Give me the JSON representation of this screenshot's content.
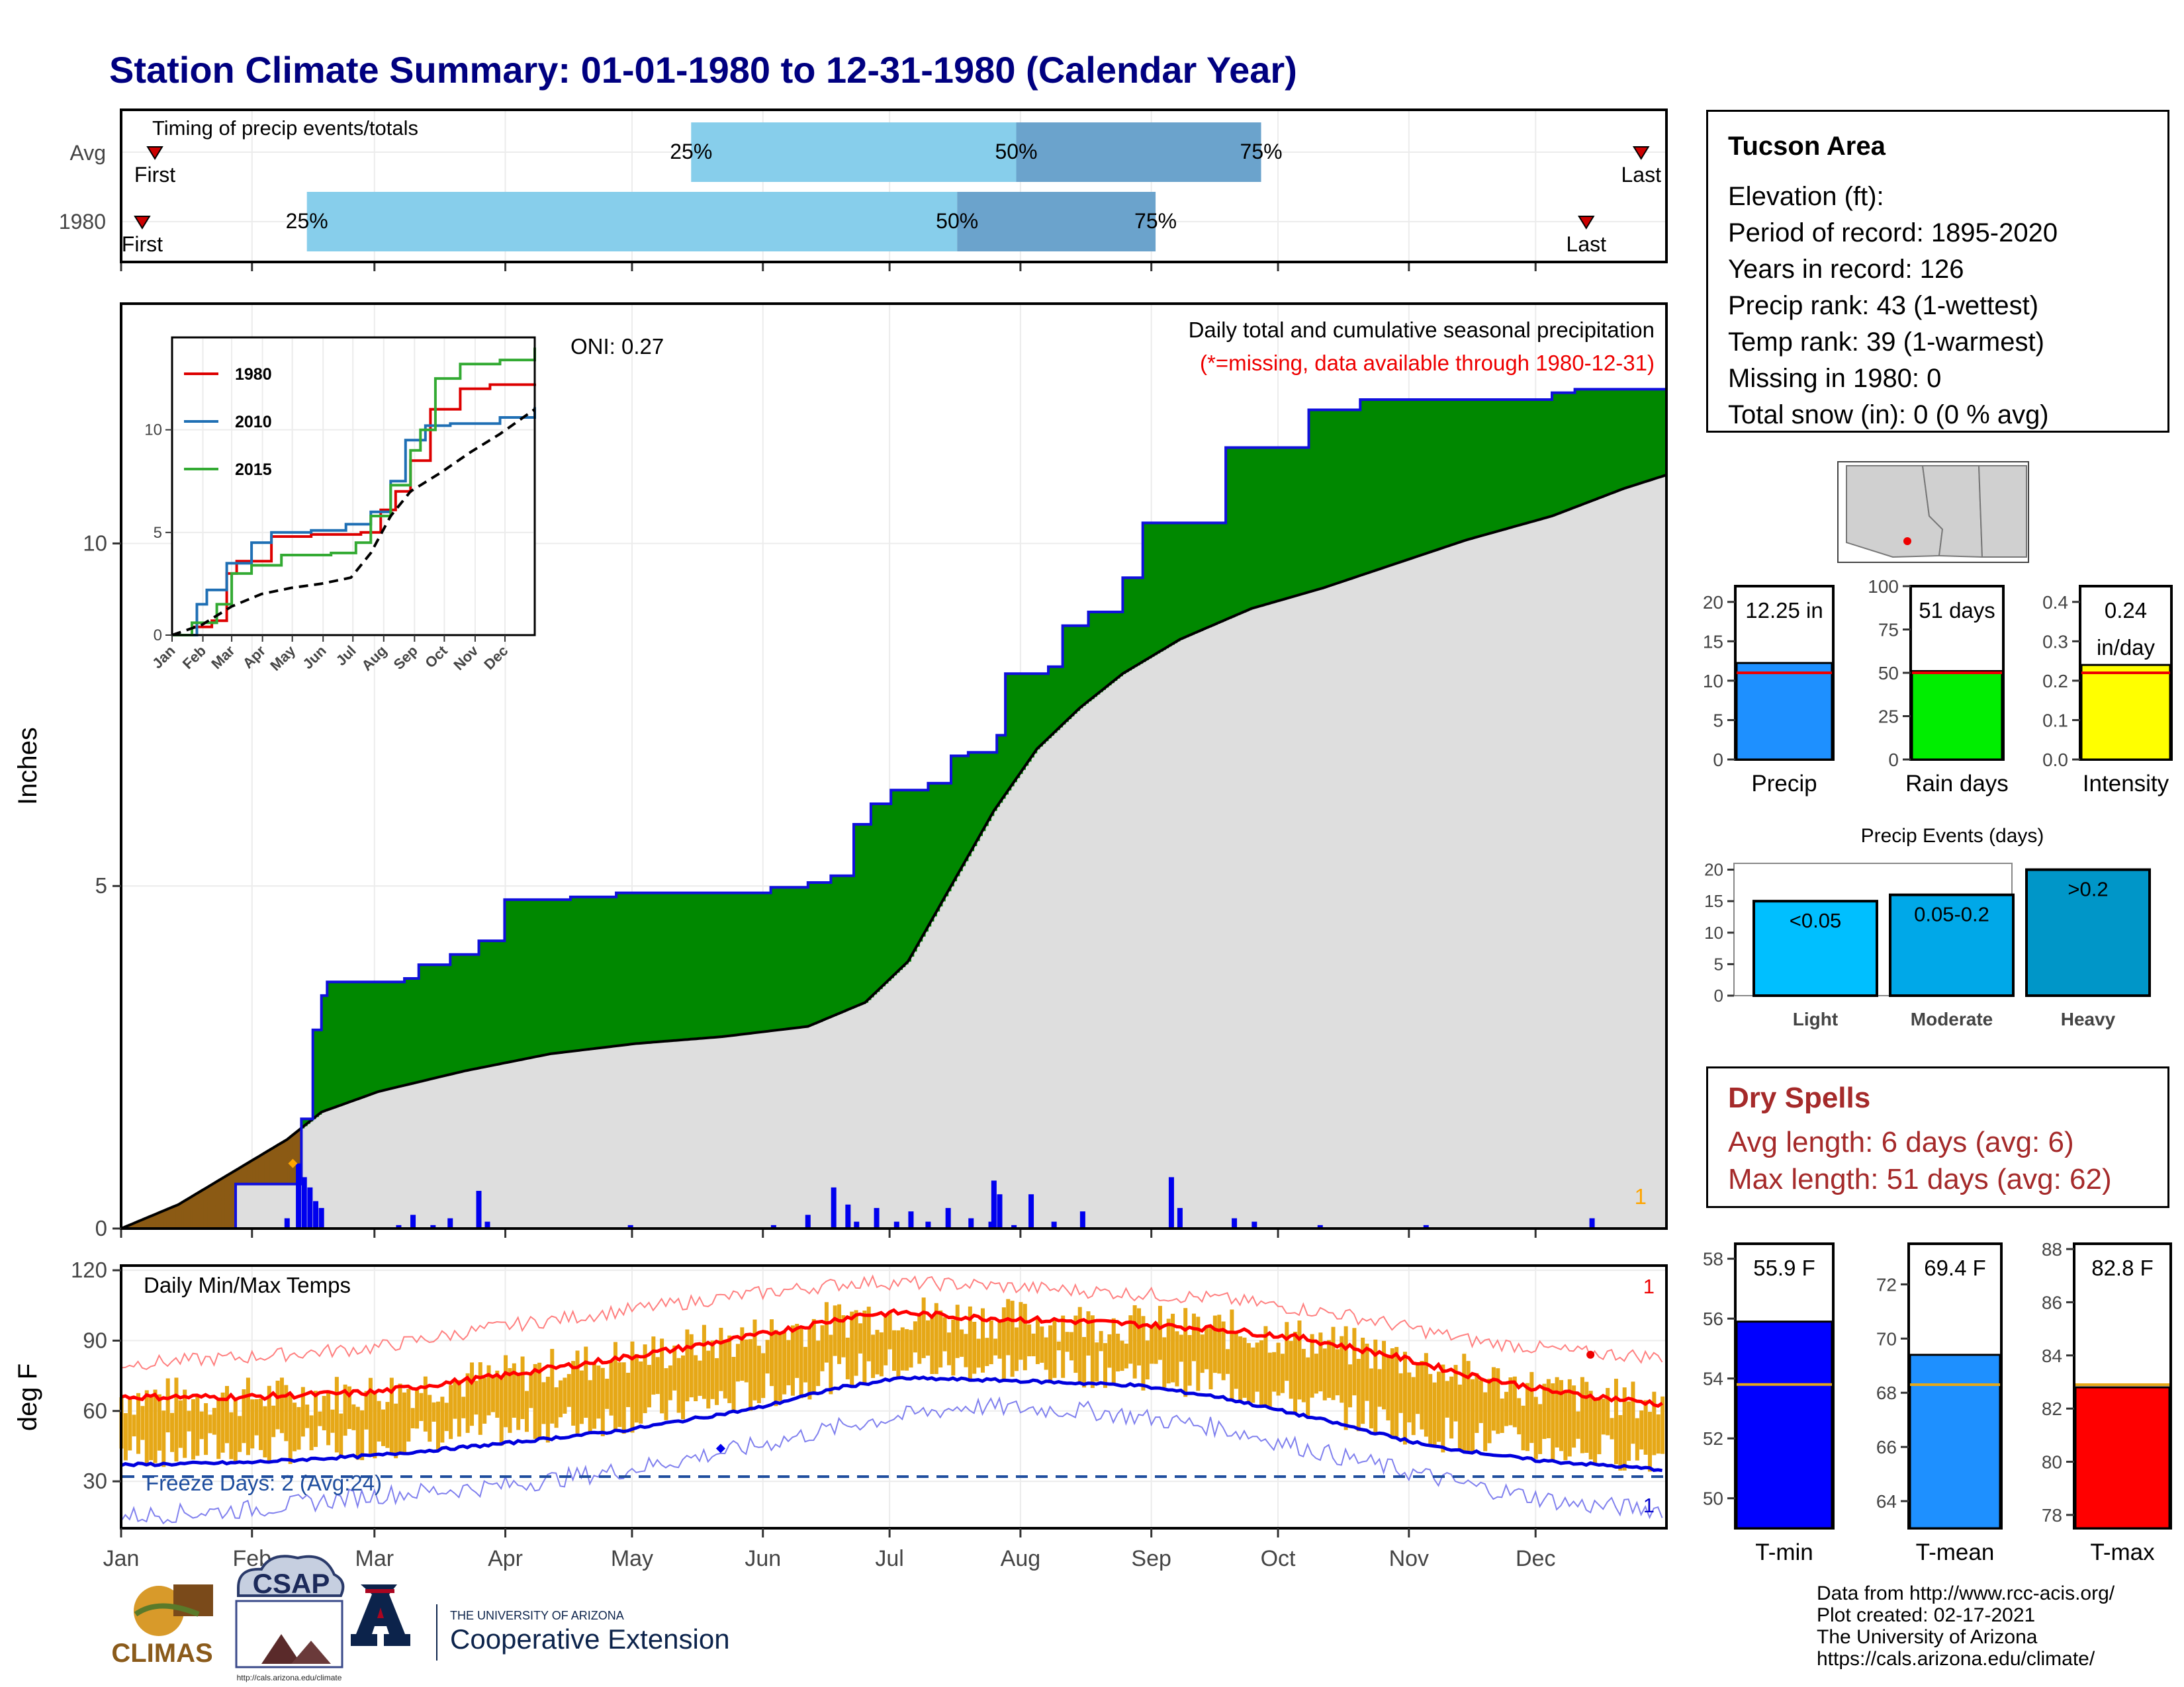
{
  "title": "Station Climate Summary: 01-01-1980 to 12-31-1980 (Calendar Year)",
  "station": {
    "name": "Tucson Area",
    "lines": [
      "Elevation (ft):",
      "Period of record: 1895-2020",
      "Years in record: 126",
      "Precip rank: 43 (1-wettest)",
      "Temp rank: 39 (1-warmest)",
      "Missing in 1980: 0",
      "Total snow (in): 0 (0 % avg)"
    ]
  },
  "dry_spells": {
    "title": "Dry Spells",
    "avg": "Avg length: 6 days (avg: 6)",
    "max": "Max length: 51 days (avg: 62)"
  },
  "credits": [
    "Data from http://www.rcc-acis.org/",
    "Plot created: 02-17-2021",
    "The University of Arizona",
    "https://cals.arizona.edu/climate/"
  ],
  "logos": {
    "climas": "CLIMAS",
    "csap": "CSAP",
    "csap_url": "http://cals.arizona.edu/climate",
    "ua_small": "THE UNIVERSITY OF ARIZONA",
    "ua_big": "Cooperative Extension"
  },
  "colors": {
    "title": "#000080",
    "q_light": "#87ceeb",
    "q_dark": "#6ba3cc",
    "precip_green": "#008800",
    "precip_brown": "#8b5a14",
    "avg_fill": "#dedede",
    "daily_bar": "#0000ee",
    "temp_bar": "#e6a817",
    "tmax": "#ff0000",
    "tmin": "#0000dd",
    "precip_bar": "#1e90ff",
    "days_bar": "#00ee00",
    "int_bar": "#ffff00",
    "light": "#00bfff",
    "moderate": "#00a8e8",
    "heavy": "#0096c8",
    "tmin_bar": "#0000ff",
    "tmean_bar": "#1e90ff",
    "tmax_bar": "#ff0000"
  },
  "chart_data": [
    {
      "id": "timing",
      "type": "bar",
      "title": "Timing of precip events/totals",
      "rows": [
        {
          "label": "Avg",
          "first": "First",
          "last": "Last",
          "first_day": 8,
          "last_day": 360,
          "q25_day": 135,
          "q50_day": 212,
          "q75_day": 270,
          "q25": "25%",
          "q50": "50%",
          "q75": "75%"
        },
        {
          "label": "1980",
          "first": "First",
          "last": "Last",
          "first_day": 5,
          "last_day": 347,
          "q25_day": 44,
          "q50_day": 198,
          "q75_day": 245,
          "q25": "25%",
          "q50": "50%",
          "q75": "75%"
        }
      ]
    },
    {
      "id": "precip",
      "type": "area",
      "title": "Daily total and cumulative seasonal precipitation",
      "subtitle": "(*=missing, data available through 1980-12-31)",
      "ylabel": "Inches",
      "oni": "ONI: 0.27",
      "ylim": [
        0,
        13.5
      ],
      "yticks": [
        0,
        5,
        10
      ],
      "corner_label": "1",
      "xticks": [
        "Jan",
        "Feb",
        "Mar",
        "Apr",
        "May",
        "Jun",
        "Jul",
        "Aug",
        "Sep",
        "Oct",
        "Nov",
        "Dec"
      ],
      "cumulative_1980": [
        [
          0,
          0
        ],
        [
          20,
          0
        ],
        [
          40,
          0.65
        ],
        [
          58,
          0.65
        ],
        [
          63,
          1.6
        ],
        [
          67,
          2.9
        ],
        [
          70,
          3.4
        ],
        [
          72,
          3.6
        ],
        [
          99,
          3.65
        ],
        [
          104,
          3.85
        ],
        [
          115,
          4.0
        ],
        [
          125,
          4.2
        ],
        [
          134,
          4.8
        ],
        [
          157,
          4.84
        ],
        [
          173,
          4.9
        ],
        [
          227,
          4.98
        ],
        [
          240,
          5.05
        ],
        [
          248,
          5.15
        ],
        [
          256,
          5.9
        ],
        [
          262,
          6.2
        ],
        [
          269,
          6.4
        ],
        [
          282,
          6.5
        ],
        [
          290,
          6.9
        ],
        [
          296,
          6.95
        ],
        [
          306,
          7.2
        ],
        [
          309,
          8.1
        ],
        [
          324,
          8.2
        ],
        [
          329,
          8.8
        ],
        [
          338,
          9.0
        ],
        [
          350,
          9.5
        ],
        [
          357,
          10.3
        ],
        [
          366,
          10.3
        ],
        [
          386,
          11.4
        ],
        [
          415,
          11.95
        ],
        [
          433,
          12.1
        ],
        [
          469,
          12.1
        ],
        [
          500,
          12.2
        ],
        [
          508,
          12.25
        ],
        [
          540,
          12.25
        ]
      ],
      "cumulative_avg": [
        [
          0,
          0
        ],
        [
          20,
          0.35
        ],
        [
          40,
          0.85
        ],
        [
          58,
          1.3
        ],
        [
          70,
          1.7
        ],
        [
          90,
          2.0
        ],
        [
          120,
          2.3
        ],
        [
          150,
          2.55
        ],
        [
          180,
          2.7
        ],
        [
          210,
          2.8
        ],
        [
          240,
          2.95
        ],
        [
          260,
          3.3
        ],
        [
          275,
          3.9
        ],
        [
          290,
          5.0
        ],
        [
          305,
          6.1
        ],
        [
          320,
          7.0
        ],
        [
          335,
          7.6
        ],
        [
          350,
          8.1
        ],
        [
          370,
          8.6
        ],
        [
          395,
          9.05
        ],
        [
          420,
          9.35
        ],
        [
          445,
          9.7
        ],
        [
          470,
          10.05
        ],
        [
          500,
          10.4
        ],
        [
          525,
          10.8
        ],
        [
          540,
          11.0
        ]
      ],
      "daily": [
        [
          58,
          0.15
        ],
        [
          62,
          0.95
        ],
        [
          64,
          0.75
        ],
        [
          66,
          0.6
        ],
        [
          68,
          0.4
        ],
        [
          70,
          0.3
        ],
        [
          97,
          0.05
        ],
        [
          102,
          0.2
        ],
        [
          109,
          0.05
        ],
        [
          115,
          0.15
        ],
        [
          125,
          0.55
        ],
        [
          128,
          0.1
        ],
        [
          178,
          0.05
        ],
        [
          228,
          0.05
        ],
        [
          240,
          0.2
        ],
        [
          249,
          0.6
        ],
        [
          254,
          0.35
        ],
        [
          257,
          0.1
        ],
        [
          264,
          0.3
        ],
        [
          271,
          0.1
        ],
        [
          276,
          0.25
        ],
        [
          282,
          0.1
        ],
        [
          289,
          0.3
        ],
        [
          297,
          0.15
        ],
        [
          304,
          0.1
        ],
        [
          305,
          0.7
        ],
        [
          307,
          0.5
        ],
        [
          312,
          0.05
        ],
        [
          318,
          0.5
        ],
        [
          326,
          0.1
        ],
        [
          336,
          0.25
        ],
        [
          367,
          0.75
        ],
        [
          370,
          0.3
        ],
        [
          389,
          0.15
        ],
        [
          396,
          0.1
        ],
        [
          419,
          0.05
        ],
        [
          456,
          0.05
        ],
        [
          514,
          0.15
        ]
      ]
    },
    {
      "id": "inset",
      "type": "line",
      "xticks": [
        "Jan",
        "Feb",
        "Mar",
        "Apr",
        "May",
        "Jun",
        "Jul",
        "Aug",
        "Sep",
        "Oct",
        "Nov",
        "Dec"
      ],
      "yticks": [
        0,
        5,
        10
      ],
      "series": [
        {
          "name": "1980",
          "color": "#dd0000",
          "values": [
            [
              0,
              0
            ],
            [
              20,
              0.4
            ],
            [
              40,
              0.7
            ],
            [
              55,
              3.0
            ],
            [
              65,
              3.6
            ],
            [
              100,
              4.8
            ],
            [
              140,
              4.9
            ],
            [
              190,
              5.0
            ],
            [
              210,
              6.1
            ],
            [
              225,
              7.0
            ],
            [
              240,
              8.5
            ],
            [
              260,
              11.0
            ],
            [
              290,
              12.0
            ],
            [
              320,
              12.2
            ],
            [
              365,
              12.25
            ]
          ]
        },
        {
          "name": "2010",
          "color": "#1f6fb4",
          "values": [
            [
              0,
              0
            ],
            [
              25,
              1.5
            ],
            [
              35,
              2.2
            ],
            [
              55,
              3.5
            ],
            [
              80,
              4.5
            ],
            [
              100,
              5.0
            ],
            [
              140,
              5.1
            ],
            [
              175,
              5.4
            ],
            [
              200,
              6.0
            ],
            [
              220,
              7.5
            ],
            [
              235,
              9.5
            ],
            [
              255,
              10.2
            ],
            [
              280,
              10.3
            ],
            [
              330,
              10.6
            ],
            [
              365,
              11.1
            ]
          ]
        },
        {
          "name": "2015",
          "color": "#33aa33",
          "values": [
            [
              0,
              0
            ],
            [
              20,
              0.6
            ],
            [
              45,
              1.5
            ],
            [
              60,
              3.0
            ],
            [
              80,
              3.4
            ],
            [
              110,
              3.9
            ],
            [
              160,
              4.0
            ],
            [
              185,
              4.5
            ],
            [
              200,
              5.8
            ],
            [
              220,
              7.3
            ],
            [
              240,
              9.0
            ],
            [
              250,
              10.0
            ],
            [
              265,
              12.5
            ],
            [
              290,
              13.2
            ],
            [
              330,
              13.4
            ],
            [
              365,
              14.0
            ]
          ]
        },
        {
          "name": "avg",
          "color": "#000000",
          "values": [
            [
              0,
              0
            ],
            [
              30,
              0.5
            ],
            [
              60,
              1.4
            ],
            [
              90,
              2.0
            ],
            [
              120,
              2.3
            ],
            [
              150,
              2.5
            ],
            [
              180,
              2.8
            ],
            [
              200,
              4.0
            ],
            [
              220,
              5.8
            ],
            [
              240,
              7.0
            ],
            [
              270,
              7.9
            ],
            [
              300,
              8.9
            ],
            [
              330,
              9.8
            ],
            [
              365,
              11.0
            ]
          ]
        }
      ]
    },
    {
      "id": "temps",
      "type": "bar",
      "title": "Daily Min/Max Temps",
      "ylabel": "deg F",
      "ylim": [
        10,
        122
      ],
      "yticks": [
        30,
        60,
        90,
        120
      ],
      "freeze_line": 32,
      "freeze_label": "Freeze Days: 2 (Avg:24)",
      "corner_top": "1",
      "corner_bottom": "1",
      "xticks": [
        "Jan",
        "Feb",
        "Mar",
        "Apr",
        "May",
        "Jun",
        "Jul",
        "Aug",
        "Sep",
        "Oct",
        "Nov",
        "Dec"
      ],
      "tmax_normal": [
        [
          0,
          66
        ],
        [
          30,
          66
        ],
        [
          60,
          68
        ],
        [
          90,
          75
        ],
        [
          120,
          83
        ],
        [
          150,
          92
        ],
        [
          175,
          101
        ],
        [
          185,
          102
        ],
        [
          200,
          100
        ],
        [
          230,
          98
        ],
        [
          260,
          95
        ],
        [
          280,
          91
        ],
        [
          300,
          84
        ],
        [
          320,
          75
        ],
        [
          340,
          68
        ],
        [
          365,
          63
        ]
      ],
      "tmin_normal": [
        [
          0,
          37
        ],
        [
          30,
          38
        ],
        [
          60,
          41
        ],
        [
          90,
          46
        ],
        [
          120,
          52
        ],
        [
          150,
          61
        ],
        [
          170,
          70
        ],
        [
          185,
          74
        ],
        [
          210,
          73
        ],
        [
          240,
          71
        ],
        [
          260,
          66
        ],
        [
          285,
          56
        ],
        [
          310,
          45
        ],
        [
          335,
          39
        ],
        [
          365,
          35
        ]
      ],
      "record_high": [
        [
          0,
          80
        ],
        [
          30,
          83
        ],
        [
          60,
          87
        ],
        [
          90,
          96
        ],
        [
          120,
          103
        ],
        [
          150,
          110
        ],
        [
          175,
          115
        ],
        [
          200,
          114
        ],
        [
          230,
          111
        ],
        [
          260,
          108
        ],
        [
          290,
          101
        ],
        [
          320,
          90
        ],
        [
          345,
          85
        ],
        [
          365,
          83
        ]
      ],
      "record_low": [
        [
          0,
          15
        ],
        [
          30,
          18
        ],
        [
          60,
          24
        ],
        [
          90,
          28
        ],
        [
          120,
          35
        ],
        [
          150,
          45
        ],
        [
          175,
          55
        ],
        [
          200,
          62
        ],
        [
          230,
          60
        ],
        [
          260,
          53
        ],
        [
          290,
          40
        ],
        [
          320,
          28
        ],
        [
          345,
          20
        ],
        [
          365,
          18
        ]
      ]
    },
    {
      "id": "summary_precip",
      "type": "bar",
      "panels": [
        {
          "name": "Precip",
          "label": "12.25 in",
          "value": 12.25,
          "avg": 11.0,
          "ylim": [
            0,
            22
          ],
          "yticks": [
            0,
            5,
            10,
            15,
            20
          ]
        },
        {
          "name": "Rain days",
          "label": "51 days",
          "value": 51,
          "avg": 50,
          "ylim": [
            0,
            100
          ],
          "yticks": [
            0,
            25,
            50,
            75,
            100
          ]
        },
        {
          "name": "Intensity",
          "label": "0.24 in/day",
          "label1": "0.24",
          "label2": "in/day",
          "value": 0.24,
          "avg": 0.22,
          "ylim": [
            0,
            0.44
          ],
          "yticks": [
            0.0,
            0.1,
            0.2,
            0.3,
            0.4
          ]
        }
      ]
    },
    {
      "id": "events",
      "type": "bar",
      "title": "Precip Events (days)",
      "categories": [
        "Light",
        "Moderate",
        "Heavy"
      ],
      "bar_labels": [
        "<0.05",
        "0.05-0.2",
        ">0.2"
      ],
      "values": [
        15,
        16,
        20
      ],
      "ylim": [
        0,
        21
      ],
      "yticks": [
        0,
        5,
        10,
        15,
        20
      ]
    },
    {
      "id": "summary_temp",
      "type": "bar",
      "panels": [
        {
          "name": "T-min",
          "label": "55.9 F",
          "value": 55.9,
          "avg": 53.8,
          "ylim": [
            49,
            58.5
          ],
          "yticks": [
            50,
            52,
            54,
            56,
            58
          ]
        },
        {
          "name": "T-mean",
          "label": "69.4 F",
          "value": 69.4,
          "avg": 68.3,
          "ylim": [
            63,
            73.5
          ],
          "yticks": [
            64,
            66,
            68,
            70,
            72
          ]
        },
        {
          "name": "T-max",
          "label": "82.8 F",
          "value": 82.8,
          "avg": 82.9,
          "ylim": [
            77.5,
            88.2
          ],
          "yticks": [
            78,
            80,
            82,
            84,
            86,
            88
          ]
        }
      ]
    }
  ]
}
